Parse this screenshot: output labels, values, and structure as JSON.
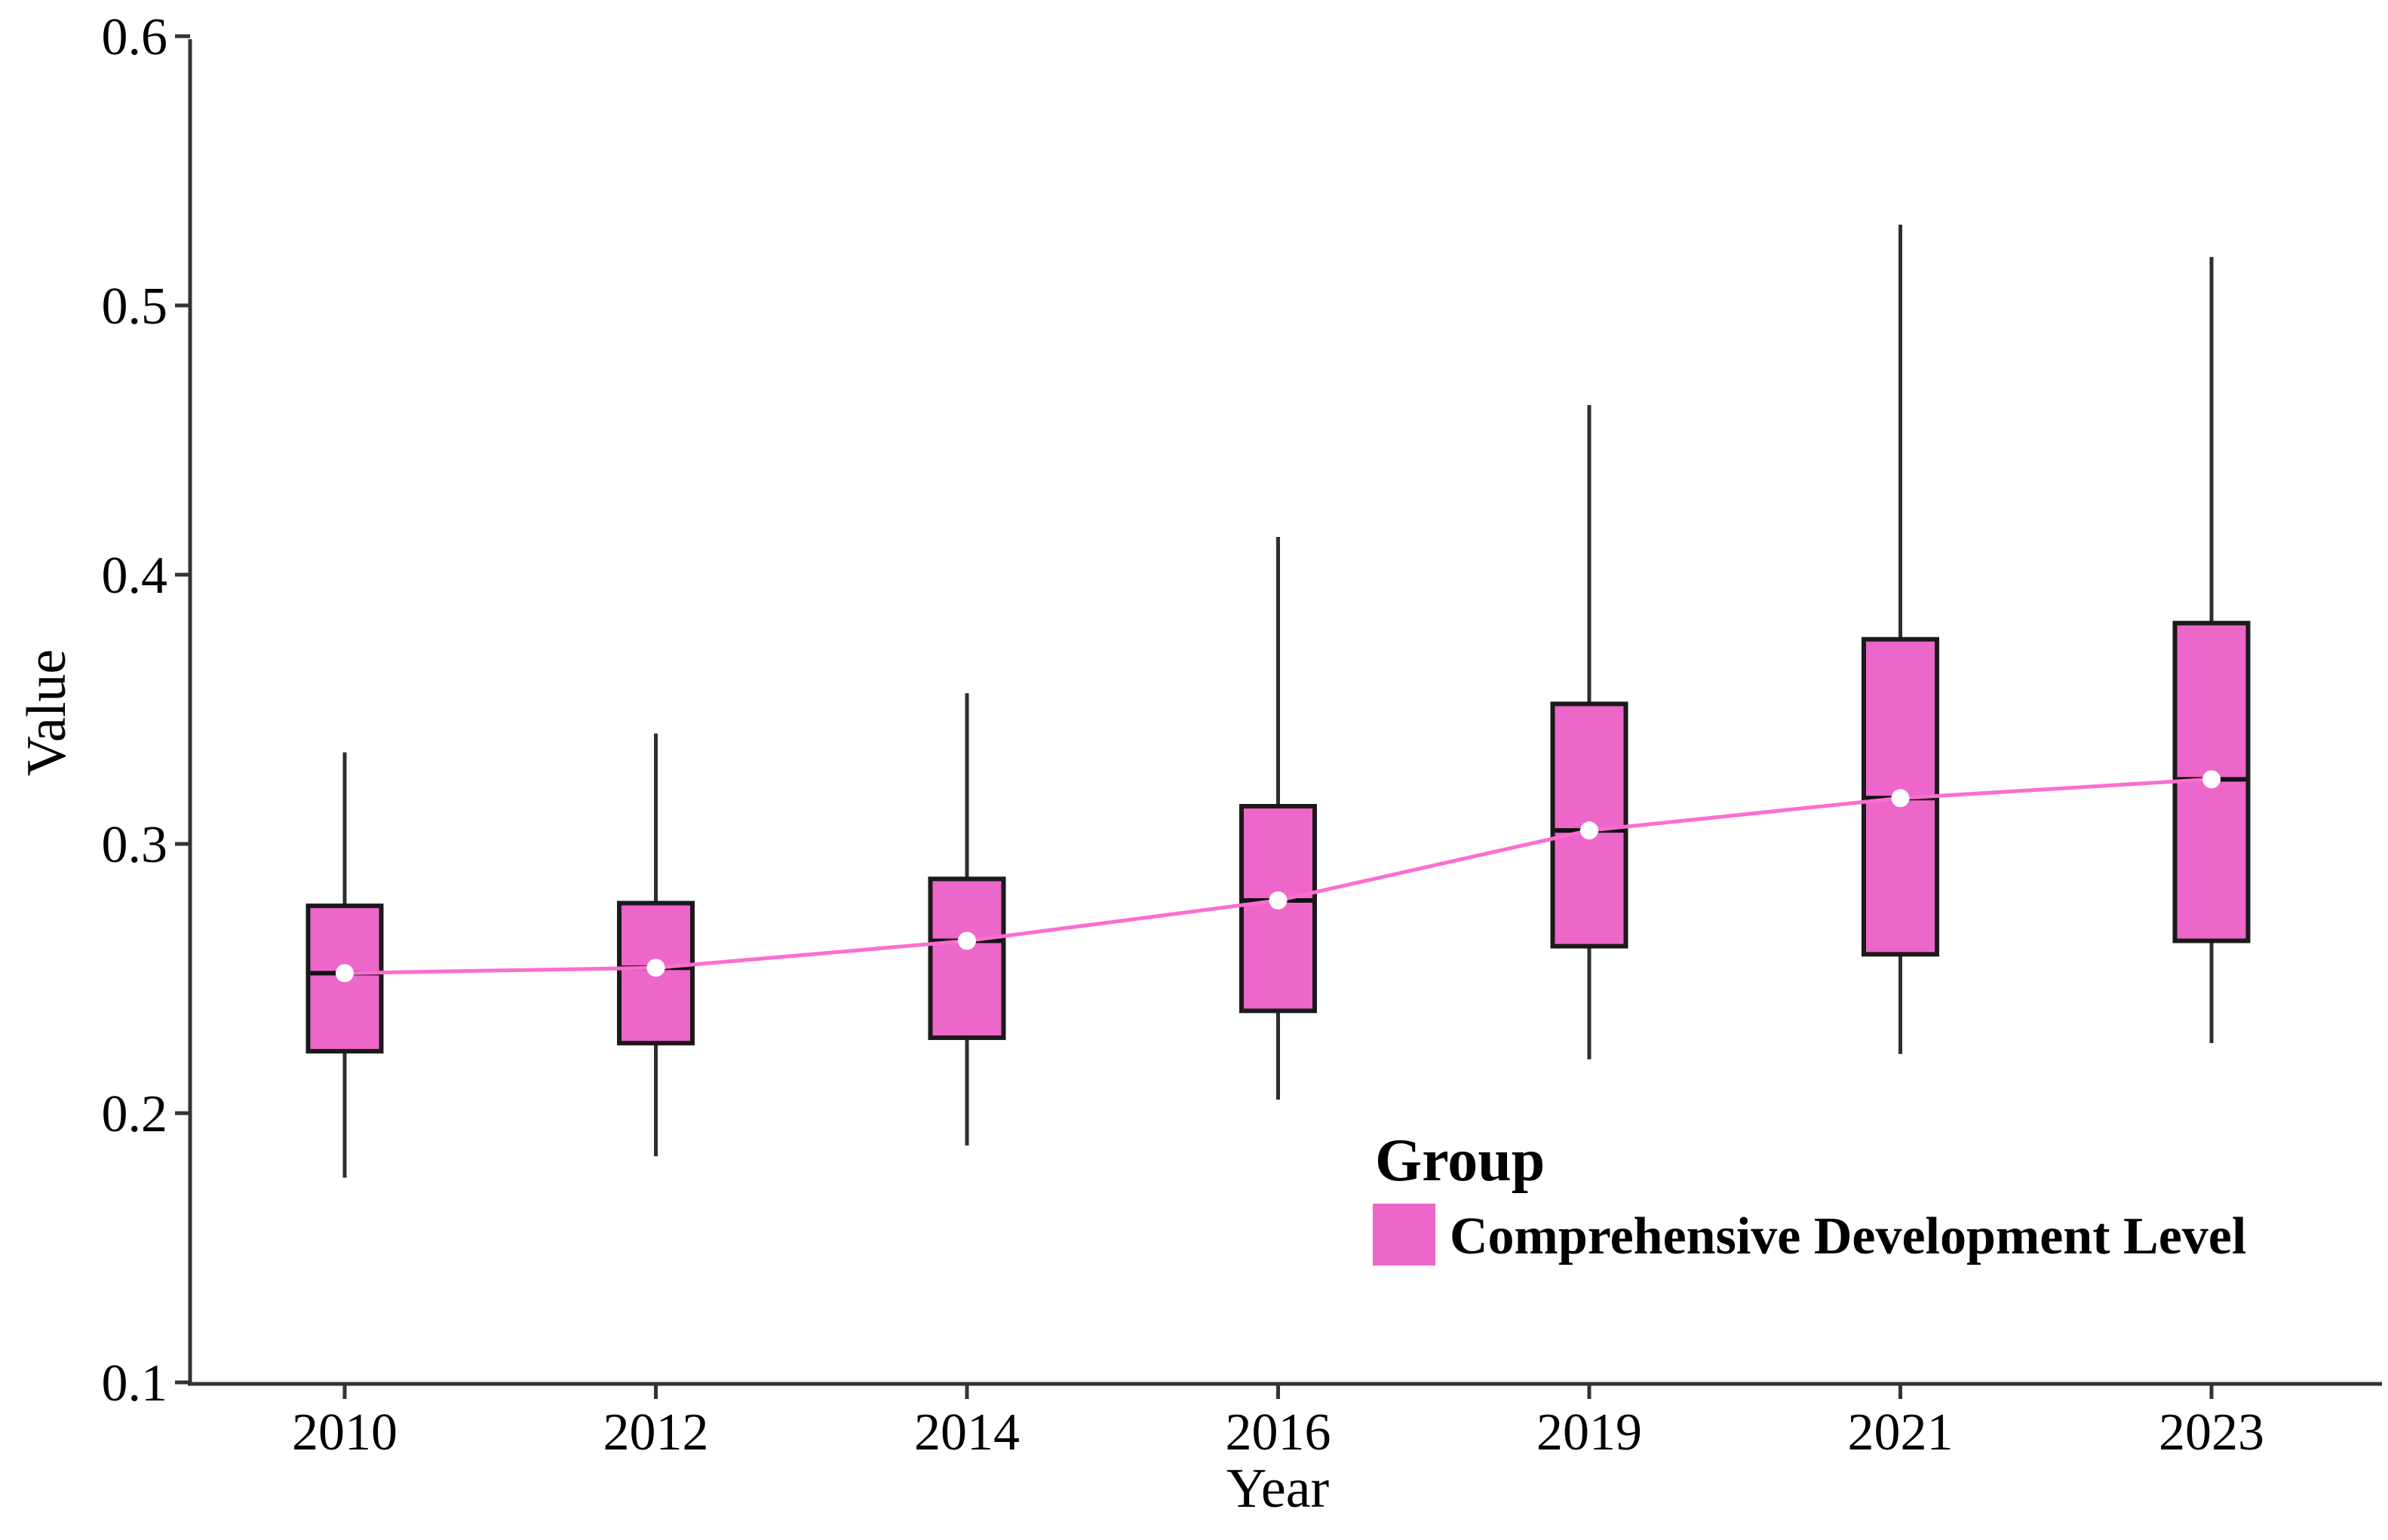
{
  "chart_data": {
    "type": "boxplot",
    "title": "",
    "xlabel": "Year",
    "ylabel": "Value",
    "categories": [
      "2010",
      "2012",
      "2014",
      "2016",
      "2019",
      "2021",
      "2023"
    ],
    "series": [
      {
        "name": "Comprehensive Development Level",
        "boxes": [
          {
            "category": "2010",
            "whisker_low": 0.176,
            "q1": 0.223,
            "median": 0.252,
            "q3": 0.277,
            "whisker_high": 0.334
          },
          {
            "category": "2012",
            "whisker_low": 0.184,
            "q1": 0.226,
            "median": 0.254,
            "q3": 0.278,
            "whisker_high": 0.341
          },
          {
            "category": "2014",
            "whisker_low": 0.188,
            "q1": 0.228,
            "median": 0.264,
            "q3": 0.287,
            "whisker_high": 0.356
          },
          {
            "category": "2016",
            "whisker_low": 0.205,
            "q1": 0.238,
            "median": 0.279,
            "q3": 0.314,
            "whisker_high": 0.414
          },
          {
            "category": "2019",
            "whisker_low": 0.22,
            "q1": 0.262,
            "median": 0.305,
            "q3": 0.352,
            "whisker_high": 0.463
          },
          {
            "category": "2021",
            "whisker_low": 0.222,
            "q1": 0.259,
            "median": 0.317,
            "q3": 0.376,
            "whisker_high": 0.53
          },
          {
            "category": "2023",
            "whisker_low": 0.226,
            "q1": 0.264,
            "median": 0.324,
            "q3": 0.382,
            "whisker_high": 0.518
          }
        ],
        "median_trend": [
          0.252,
          0.254,
          0.264,
          0.279,
          0.305,
          0.317,
          0.324
        ]
      }
    ],
    "ylim": [
      0.1,
      0.6
    ],
    "ytick_labels": [
      "0.1",
      "0.2",
      "0.3",
      "0.4",
      "0.5",
      "0.6"
    ],
    "grid": false,
    "legend": {
      "title": "Group",
      "entries": [
        {
          "label": "Comprehensive Development Level",
          "color": "#ED66C9"
        }
      ],
      "position": "inside-bottom-right"
    },
    "colors": {
      "box_fill": "#ED66C9",
      "box_border": "#1a1a1a",
      "whisker": "#2e2e2e",
      "median_line": "#111111",
      "trend_line": "#FB6ECF",
      "median_dot": "#ffffff",
      "axis": "#333333",
      "text": "#000000"
    }
  }
}
